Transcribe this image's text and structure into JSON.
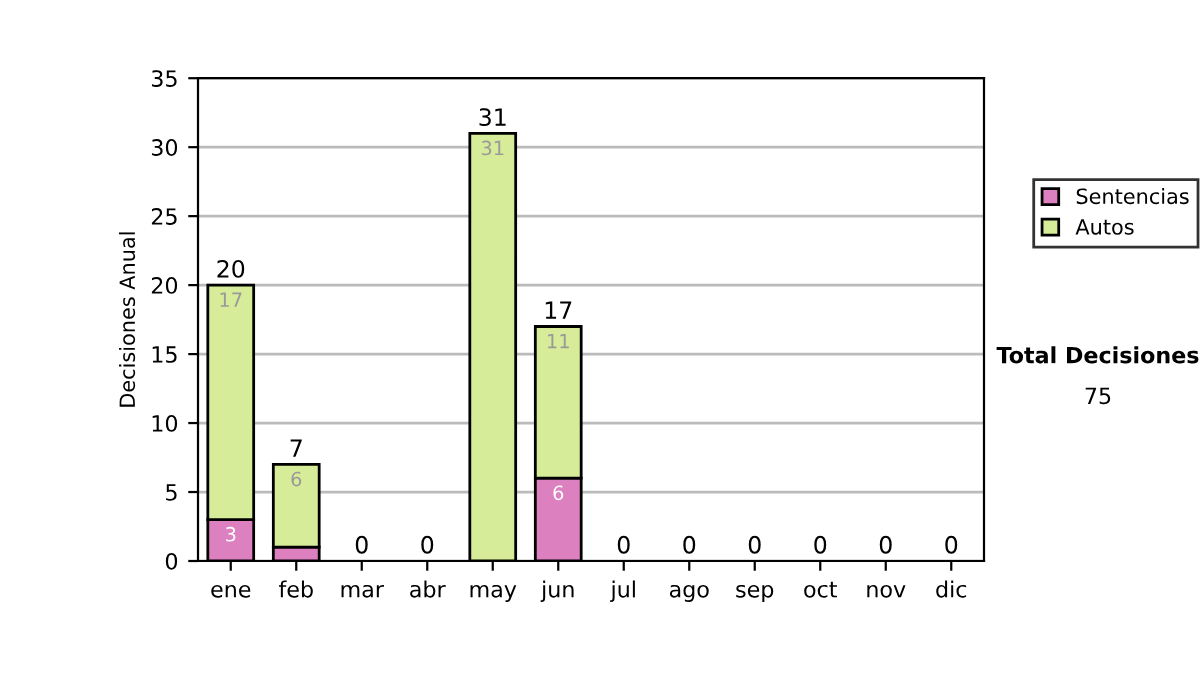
{
  "chart_data": {
    "type": "bar",
    "ylabel": "Decisiones Anual",
    "categories": [
      "ene",
      "feb",
      "mar",
      "abr",
      "may",
      "jun",
      "jul",
      "ago",
      "sep",
      "oct",
      "nov",
      "dic"
    ],
    "stacked": true,
    "series": [
      {
        "name": "Sentencias",
        "color": "#dd80c0",
        "values": [
          3,
          1,
          0,
          0,
          0,
          6,
          0,
          0,
          0,
          0,
          0,
          0
        ],
        "value_labels": [
          "3",
          null,
          null,
          null,
          null,
          "6",
          null,
          null,
          null,
          null,
          null,
          null
        ]
      },
      {
        "name": "Autos",
        "color": "#d6ec98",
        "values": [
          17,
          6,
          0,
          0,
          31,
          11,
          0,
          0,
          0,
          0,
          0,
          0
        ],
        "value_labels": [
          "17",
          "6",
          null,
          null,
          "31",
          "11",
          null,
          null,
          null,
          null,
          null,
          null
        ]
      }
    ],
    "totals": [
      "20",
      "7",
      "0",
      "0",
      "31",
      "17",
      "0",
      "0",
      "0",
      "0",
      "0",
      "0"
    ],
    "ylim": [
      0,
      35
    ],
    "yticks": [
      0,
      5,
      10,
      15,
      20,
      25,
      30,
      35
    ],
    "grid": "y",
    "legend": "right",
    "annotations": [
      "Total Decisiones",
      "75"
    ]
  }
}
